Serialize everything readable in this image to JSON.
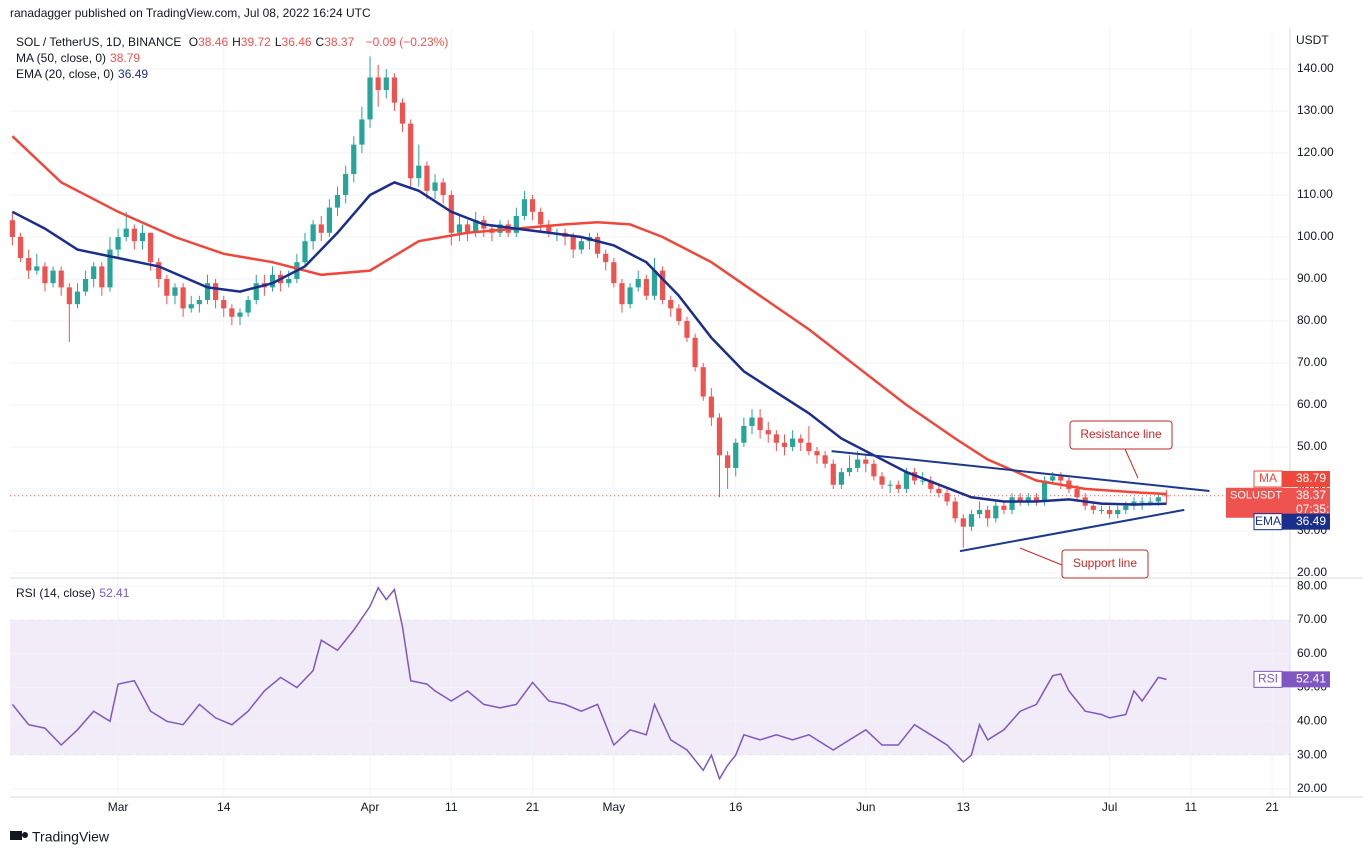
{
  "header": {
    "published": "ranadagger published on TradingView.com, Jul 08, 2022 16:24 UTC",
    "footer": "TradingView"
  },
  "chart_data": {
    "type": "candlestick",
    "symbol": "SOL / TetherUS, 1D, BINANCE",
    "ohlc_prefixes": [
      "O",
      "H",
      "L",
      "C"
    ],
    "change": "−0.09 (−0.23%)",
    "axis_label": "USDT",
    "up_color": "#26a69a",
    "down_color": "#ef5350",
    "candles": [
      [
        104,
        106,
        98,
        100
      ],
      [
        100,
        101,
        94,
        95
      ],
      [
        95,
        97,
        90,
        92
      ],
      [
        92,
        96,
        91,
        93
      ],
      [
        93,
        94,
        87,
        89
      ],
      [
        89,
        93,
        88,
        92
      ],
      [
        92,
        93,
        86,
        88
      ],
      [
        88,
        89,
        75,
        84
      ],
      [
        84,
        89,
        83,
        87
      ],
      [
        87,
        92,
        86,
        90
      ],
      [
        90,
        94,
        88,
        93
      ],
      [
        93,
        94,
        86,
        88
      ],
      [
        88,
        100,
        87,
        97
      ],
      [
        97,
        102,
        95,
        100
      ],
      [
        100,
        106,
        99,
        102
      ],
      [
        102,
        103,
        97,
        99
      ],
      [
        99,
        103,
        97,
        101
      ],
      [
        101,
        101,
        92,
        94
      ],
      [
        94,
        95,
        88,
        90
      ],
      [
        90,
        91,
        84,
        86
      ],
      [
        86,
        89,
        84,
        88
      ],
      [
        88,
        89,
        81,
        83
      ],
      [
        83,
        86,
        82,
        84
      ],
      [
        84,
        86,
        82,
        85
      ],
      [
        85,
        91,
        84,
        89
      ],
      [
        89,
        90,
        83,
        85
      ],
      [
        85,
        86,
        81,
        83
      ],
      [
        83,
        84,
        79,
        81
      ],
      [
        81,
        83,
        79,
        82
      ],
      [
        82,
        86,
        81,
        85
      ],
      [
        85,
        91,
        84,
        89
      ],
      [
        89,
        91,
        86,
        88
      ],
      [
        88,
        93,
        87,
        91
      ],
      [
        91,
        92,
        87,
        89
      ],
      [
        89,
        92,
        88,
        90
      ],
      [
        90,
        96,
        89,
        94
      ],
      [
        94,
        101,
        93,
        99
      ],
      [
        99,
        104,
        97,
        103
      ],
      [
        103,
        105,
        99,
        101
      ],
      [
        101,
        109,
        100,
        107
      ],
      [
        107,
        112,
        105,
        110
      ],
      [
        110,
        117,
        108,
        115
      ],
      [
        115,
        124,
        113,
        122
      ],
      [
        122,
        131,
        120,
        128
      ],
      [
        128,
        143,
        126,
        138
      ],
      [
        138,
        141,
        131,
        135
      ],
      [
        135,
        140,
        133,
        138
      ],
      [
        138,
        139,
        130,
        132
      ],
      [
        132,
        133,
        125,
        127
      ],
      [
        127,
        128,
        112,
        114
      ],
      [
        114,
        122,
        112,
        117
      ],
      [
        117,
        118,
        109,
        111
      ],
      [
        111,
        115,
        109,
        113
      ],
      [
        113,
        114,
        108,
        110
      ],
      [
        110,
        111,
        98,
        101
      ],
      [
        101,
        105,
        99,
        103
      ],
      [
        103,
        104,
        99,
        101
      ],
      [
        101,
        106,
        100,
        104
      ],
      [
        104,
        105,
        100,
        102
      ],
      [
        102,
        103,
        99,
        101
      ],
      [
        101,
        104,
        100,
        103
      ],
      [
        103,
        104,
        100,
        101
      ],
      [
        101,
        107,
        100,
        105
      ],
      [
        105,
        111,
        104,
        109
      ],
      [
        109,
        110,
        104,
        106
      ],
      [
        106,
        107,
        101,
        103
      ],
      [
        103,
        104,
        100,
        101
      ],
      [
        101,
        102,
        99,
        101
      ],
      [
        101,
        102,
        98,
        100
      ],
      [
        100,
        101,
        95,
        97
      ],
      [
        97,
        100,
        96,
        99
      ],
      [
        99,
        101,
        97,
        100
      ],
      [
        100,
        101,
        95,
        96
      ],
      [
        96,
        97,
        92,
        94
      ],
      [
        94,
        95,
        88,
        89
      ],
      [
        89,
        90,
        82,
        84
      ],
      [
        84,
        89,
        83,
        88
      ],
      [
        88,
        92,
        87,
        90
      ],
      [
        90,
        91,
        85,
        86
      ],
      [
        86,
        95,
        85,
        92
      ],
      [
        92,
        93,
        84,
        85
      ],
      [
        85,
        86,
        81,
        83
      ],
      [
        83,
        84,
        79,
        80
      ],
      [
        80,
        81,
        75,
        76
      ],
      [
        76,
        77,
        68,
        69
      ],
      [
        69,
        70,
        61,
        62
      ],
      [
        62,
        64,
        55,
        57
      ],
      [
        57,
        58,
        38,
        48
      ],
      [
        48,
        49,
        40,
        45
      ],
      [
        45,
        52,
        43,
        51
      ],
      [
        51,
        57,
        50,
        55
      ],
      [
        55,
        59,
        53,
        57
      ],
      [
        57,
        59,
        52,
        54
      ],
      [
        54,
        56,
        51,
        53
      ],
      [
        53,
        54,
        49,
        51
      ],
      [
        51,
        53,
        48,
        50
      ],
      [
        50,
        54,
        49,
        52
      ],
      [
        52,
        53,
        49,
        51
      ],
      [
        51,
        55,
        48,
        49
      ],
      [
        49,
        50,
        46,
        48
      ],
      [
        48,
        49,
        45,
        46
      ],
      [
        46,
        47,
        40,
        41
      ],
      [
        41,
        45,
        40,
        44
      ],
      [
        44,
        48,
        43,
        45
      ],
      [
        45,
        49,
        44,
        47
      ],
      [
        47,
        48,
        44,
        46
      ],
      [
        46,
        47,
        42,
        43
      ],
      [
        43,
        44,
        40,
        41
      ],
      [
        41,
        42,
        39,
        41
      ],
      [
        41,
        42,
        39,
        40
      ],
      [
        40,
        45,
        39,
        44
      ],
      [
        44,
        45,
        41,
        42
      ],
      [
        42,
        44,
        41,
        42
      ],
      [
        42,
        43,
        39,
        40
      ],
      [
        40,
        41,
        38,
        39
      ],
      [
        39,
        40,
        36,
        37
      ],
      [
        37,
        38,
        32,
        33
      ],
      [
        33,
        34,
        26,
        31
      ],
      [
        31,
        35,
        30,
        34
      ],
      [
        34,
        37,
        33,
        35
      ],
      [
        35,
        36,
        31,
        33
      ],
      [
        33,
        37,
        32,
        36
      ],
      [
        36,
        37,
        34,
        35
      ],
      [
        35,
        39,
        34,
        38
      ],
      [
        38,
        39,
        36,
        37
      ],
      [
        37,
        39,
        36,
        38
      ],
      [
        38,
        39,
        36,
        37
      ],
      [
        37,
        43,
        36,
        42
      ],
      [
        42,
        44,
        41,
        43
      ],
      [
        43,
        44,
        40,
        42
      ],
      [
        42,
        43,
        39,
        40
      ],
      [
        40,
        41,
        37,
        38
      ],
      [
        38,
        39,
        35,
        36
      ],
      [
        36,
        37,
        34,
        35
      ],
      [
        35,
        36,
        34,
        35
      ],
      [
        35,
        36,
        33,
        34
      ],
      [
        34,
        36,
        33,
        35
      ],
      [
        35,
        37,
        34,
        36
      ],
      [
        36,
        38,
        35,
        37
      ],
      [
        37,
        38,
        35,
        37
      ],
      [
        37,
        38,
        36,
        37
      ],
      [
        37,
        39,
        36,
        38
      ],
      [
        38.46,
        39.72,
        36.46,
        38.37
      ]
    ],
    "xlim": [
      -0.3,
      157.2
    ],
    "xticks": [
      {
        "value": 13,
        "label": "Mar"
      },
      {
        "value": 26,
        "label": "14"
      },
      {
        "value": 44,
        "label": "Apr"
      },
      {
        "value": 54,
        "label": "11"
      },
      {
        "value": 64,
        "label": "21"
      },
      {
        "value": 74,
        "label": "May"
      },
      {
        "value": 89,
        "label": "16"
      },
      {
        "value": 105,
        "label": "Jun"
      },
      {
        "value": 117,
        "label": "13"
      },
      {
        "value": 135,
        "label": "Jul"
      },
      {
        "value": 145,
        "label": "11"
      },
      {
        "value": 155,
        "label": "21"
      }
    ],
    "ylim": [
      19.5,
      149.3
    ],
    "yticks": [
      {
        "value": 20,
        "label": "20.00"
      },
      {
        "value": 30,
        "label": "30.00"
      },
      {
        "value": 40,
        "label": "40.00"
      },
      {
        "value": 50,
        "label": "50.00"
      },
      {
        "value": 60,
        "label": "60.00"
      },
      {
        "value": 70,
        "label": "70.00"
      },
      {
        "value": 80,
        "label": "80.00"
      },
      {
        "value": 90,
        "label": "90.00"
      },
      {
        "value": 100,
        "label": "100.00"
      },
      {
        "value": 110,
        "label": "110.00"
      },
      {
        "value": 120,
        "label": "120.00"
      },
      {
        "value": 130,
        "label": "130.00"
      },
      {
        "value": 140,
        "label": "140.00"
      }
    ],
    "series": [
      {
        "name": "MA (50, close, 0)",
        "label": "MA",
        "color": "#f0473b",
        "x": [
          0,
          6,
          13,
          20,
          26,
          32,
          38,
          44,
          50,
          56,
          62,
          68,
          72,
          76,
          80,
          86,
          92,
          98,
          104,
          110,
          116,
          120,
          126,
          132,
          138,
          142
        ],
        "values": [
          124,
          113,
          106,
          100,
          96,
          94,
          91,
          92,
          99,
          101,
          102,
          103,
          103.5,
          103,
          100,
          94,
          86,
          78,
          69,
          60,
          52,
          47,
          42,
          40,
          39.2,
          38.79
        ]
      },
      {
        "name": "EMA (20, close, 0)",
        "label": "EMA",
        "color": "#1c2e8c",
        "x": [
          0,
          4,
          8,
          13,
          18,
          24,
          28,
          32,
          36,
          40,
          44,
          47,
          50,
          54,
          58,
          62,
          66,
          70,
          74,
          78,
          82,
          86,
          90,
          94,
          98,
          102,
          106,
          110,
          114,
          118,
          122,
          126,
          130,
          134,
          138,
          142
        ],
        "values": [
          106,
          102,
          97,
          95,
          93,
          88,
          87,
          89,
          93,
          101,
          110,
          113,
          111,
          106,
          103,
          102,
          101,
          100,
          98,
          94,
          86,
          76,
          68,
          63,
          58,
          52,
          48,
          44,
          41,
          38,
          37,
          37,
          37.5,
          36.5,
          36.3,
          36.49
        ]
      }
    ],
    "price_label": {
      "name": "SOLUSDT",
      "countdown": "07:35:50"
    },
    "trendlines": [
      {
        "label": "Resistance line",
        "color": "#1c3a8c",
        "x": [
          100.8,
          147.3
        ],
        "values": [
          49,
          39.5
        ]
      },
      {
        "label": "Support line",
        "color": "#1c3a8c",
        "x": [
          116.6,
          144.2
        ],
        "values": [
          25.2,
          35
        ]
      }
    ],
    "rsi": {
      "name": "RSI (14, close)",
      "label": "RSI",
      "color": "#7e57c2",
      "ylim": [
        18.2,
        81.8
      ],
      "yticks": [
        {
          "value": 20,
          "label": "20.00"
        },
        {
          "value": 30,
          "label": "30.00"
        },
        {
          "value": 40,
          "label": "40.00"
        },
        {
          "value": 50,
          "label": "50.00"
        },
        {
          "value": 60,
          "label": "60.00"
        },
        {
          "value": 70,
          "label": "70.00"
        },
        {
          "value": 80,
          "label": "80.00"
        }
      ],
      "band": [
        30,
        70
      ],
      "midline": 50,
      "x": [
        0,
        2,
        4,
        6,
        8,
        10,
        12,
        13,
        15,
        17,
        19,
        21,
        23,
        25,
        27,
        29,
        31,
        33,
        35,
        37,
        38,
        40,
        42,
        44,
        45,
        46,
        47,
        48,
        49,
        51,
        52,
        54,
        56,
        58,
        60,
        62,
        64,
        66,
        68,
        70,
        72,
        74,
        76,
        78,
        79,
        81,
        83,
        85,
        86,
        87,
        88,
        89,
        90,
        92,
        94,
        96,
        98,
        100,
        101,
        103,
        105,
        107,
        109,
        111,
        113,
        115,
        117,
        118,
        119,
        120,
        122,
        124,
        126,
        128,
        129,
        130,
        132,
        134,
        135,
        137,
        138,
        139,
        141,
        142
      ],
      "values": [
        45,
        39,
        38,
        33,
        37.5,
        43,
        40,
        51,
        52,
        43,
        40,
        39,
        45,
        41,
        39,
        43,
        49,
        53,
        50,
        55,
        64,
        61,
        67,
        74,
        79.5,
        76,
        79,
        68,
        52,
        51,
        49,
        46,
        49,
        45,
        44,
        45,
        51.5,
        46,
        45,
        43,
        45,
        33,
        37.5,
        36,
        45,
        34.5,
        31.5,
        25.5,
        30,
        23,
        27,
        30,
        36,
        34.5,
        36,
        34.5,
        36,
        33,
        31.5,
        34.5,
        37.5,
        33,
        33,
        39,
        36,
        33,
        28,
        30,
        39,
        34.5,
        37.5,
        43,
        45,
        53.5,
        54,
        49,
        43,
        42,
        41,
        42,
        49,
        46,
        53,
        52.41
      ]
    }
  }
}
